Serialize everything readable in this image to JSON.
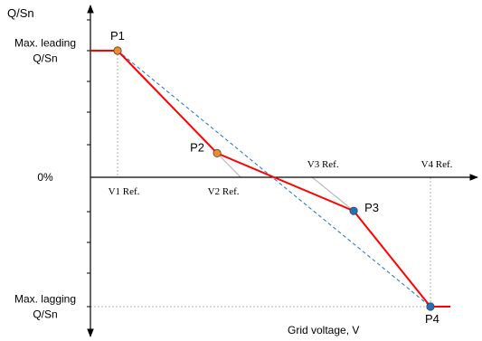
{
  "chart_data": {
    "type": "line",
    "ylabel": "Q/Sn",
    "xlabel": "Grid voltage, V",
    "y_levels": [
      {
        "text_lines": [
          "Max. leading",
          "Q/Sn"
        ],
        "value": 1
      },
      {
        "text_lines": [
          "0%"
        ],
        "value": 0
      },
      {
        "text_lines": [
          "Max. lagging",
          "Q/Sn"
        ],
        "value": -1
      }
    ],
    "x_refs": [
      {
        "label": "V1 Ref.",
        "x": 1,
        "label_side": "below"
      },
      {
        "label": "V2 Ref.",
        "x": 4.5,
        "label_side": "below"
      },
      {
        "label": "V3 Ref.",
        "x": 8,
        "label_side": "above"
      },
      {
        "label": "V4 Ref.",
        "x": 12,
        "label_side": "above"
      }
    ],
    "xlim": [
      0,
      14
    ],
    "ylim": [
      -1.2,
      1.2
    ],
    "series": [
      {
        "color": "#ff0000",
        "points": [
          {
            "label": "P1",
            "x": 1,
            "y": 1,
            "marker": "#f08a2a"
          },
          {
            "label": "P2",
            "x": 4.5,
            "y": 0.19,
            "marker": "#f08a2a"
          },
          {
            "label": "P3",
            "x": 9.3,
            "y": -0.26,
            "marker": "#1f6fc4"
          },
          {
            "label": "P4",
            "x": 12,
            "y": -1,
            "marker": "#1f6fc4"
          }
        ]
      }
    ],
    "reference_line": {
      "color": "#1f6fc4",
      "style": "dashed",
      "from": [
        1,
        1
      ],
      "to": [
        12,
        -1
      ]
    },
    "colors": {
      "axis": "#000000",
      "guide": "#999999",
      "tangent": "#b0b0b0"
    }
  }
}
